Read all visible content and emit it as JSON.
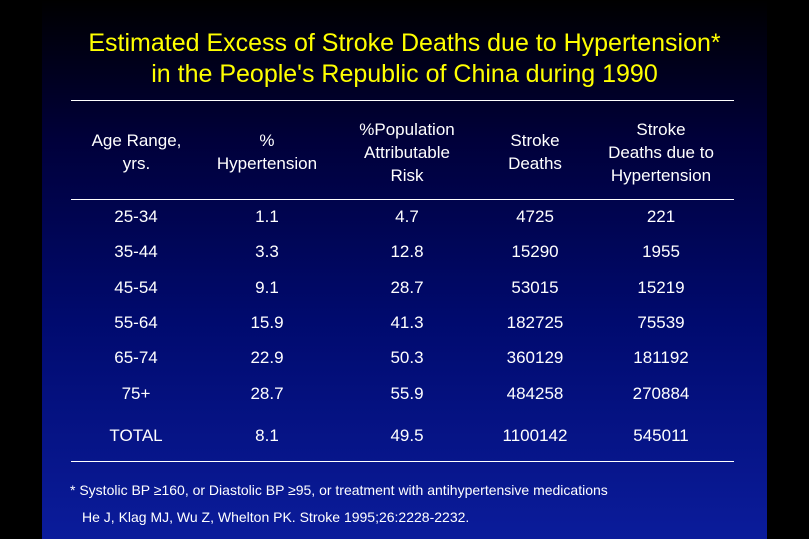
{
  "slide": {
    "title_line1": "Estimated Excess of Stroke Deaths due to Hypertension*",
    "title_line2": "in the People's Republic of China during 1990"
  },
  "table": {
    "headers": [
      "Age Range,\nyrs.",
      "%\nHypertension",
      "%Population\nAttributable\nRisk",
      "Stroke\nDeaths",
      "Stroke\nDeaths due to\nHypertension"
    ],
    "rows": [
      [
        "25-34",
        "1.1",
        "4.7",
        "4725",
        "221"
      ],
      [
        "35-44",
        "3.3",
        "12.8",
        "15290",
        "1955"
      ],
      [
        "45-54",
        "9.1",
        "28.7",
        "53015",
        "15219"
      ],
      [
        "55-64",
        "15.9",
        "41.3",
        "182725",
        "75539"
      ],
      [
        "65-74",
        "22.9",
        "50.3",
        "360129",
        "181192"
      ],
      [
        "75+",
        "28.7",
        "55.9",
        "484258",
        "270884"
      ],
      [
        "TOTAL",
        "8.1",
        "49.5",
        "1100142",
        "545011"
      ]
    ]
  },
  "footnotes": {
    "definition": "* Systolic BP  ≥160, or Diastolic BP  ≥95, or treatment with antihypertensive medications",
    "citation": "He J, Klag MJ, Wu Z, Whelton PK. Stroke 1995;26:2228-2232."
  },
  "colors": {
    "title": "#ffff00",
    "text": "#ffffff",
    "background_top": "#000000",
    "background_bottom": "#0b1c9b"
  }
}
